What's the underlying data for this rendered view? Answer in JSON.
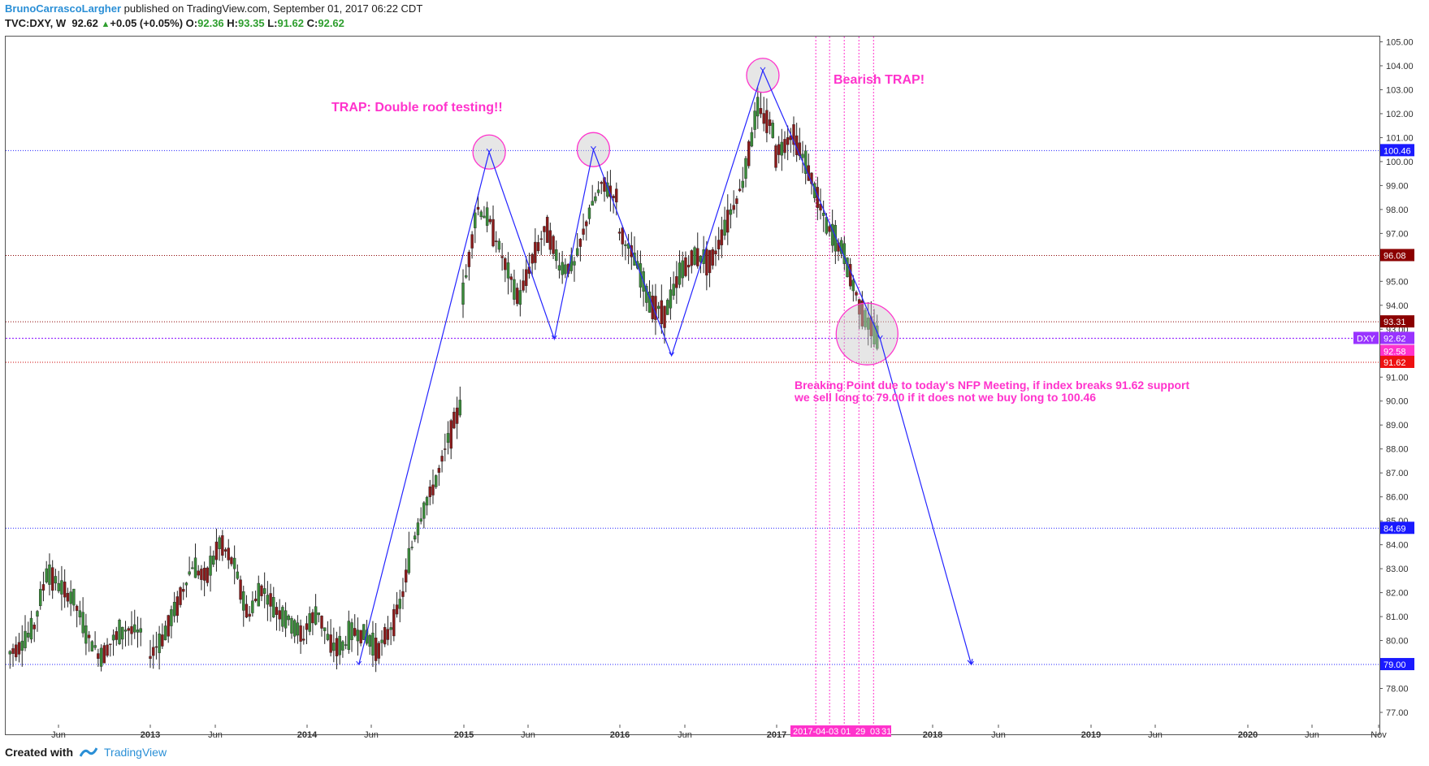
{
  "header": {
    "author": "BrunoCarrascoLargher",
    "published": " published on TradingView.com, September 01, 2017 06:22 CDT",
    "symbol_line": "TVC:DXY, W",
    "last": "92.62",
    "change_arrow": "▲",
    "change": "+0.05 (+0.05%)",
    "o_label": "O:",
    "o_val": "92.36",
    "h_label": "H:",
    "h_val": "93.35",
    "l_label": "L:",
    "l_val": "91.62",
    "c_label": "C:",
    "c_val": "92.62"
  },
  "annotations": {
    "trap_double_roof": "TRAP: Double roof testing!!",
    "bearish_trap": "Bearish TRAP!",
    "breaking_point_line1": "Breaking Point due to today's NFP Meeting, if index breaks 91.62 support",
    "breaking_point_line2": "we sell long to 79.00 if it does not we buy long to 100.46"
  },
  "footer": {
    "created_with": "Created with",
    "brand": "TradingView"
  },
  "colors": {
    "up_candle": "#3a8c3a",
    "down_candle": "#8b1a1a",
    "trendline": "#2424ff",
    "annotation": "#ff33cc",
    "blue_level": "#2222ff",
    "red_level": "#cc0000",
    "dark_red_level": "#8b0000",
    "dxy_label": "#9933ff"
  },
  "chart_data": {
    "type": "candlestick",
    "symbol": "TVC:DXY",
    "interval": "W",
    "ylim": [
      77.0,
      105.0
    ],
    "y_ticks": [
      "105.00",
      "104.00",
      "103.00",
      "102.00",
      "101.00",
      "100.00",
      "99.00",
      "98.00",
      "97.00",
      "96.00",
      "95.00",
      "94.00",
      "93.00",
      "92.00",
      "91.00",
      "90.00",
      "89.00",
      "88.00",
      "87.00",
      "86.00",
      "85.00",
      "84.00",
      "83.00",
      "82.00",
      "81.00",
      "80.00",
      "79.00",
      "78.00",
      "77.00"
    ],
    "x_ticks": [
      "Jun",
      "2013",
      "Jun",
      "2014",
      "Jun",
      "2015",
      "Jun",
      "2016",
      "Jun",
      "2017",
      "2018",
      "Jun",
      "2019",
      "Jun",
      "2020",
      "Jun",
      "Nov"
    ],
    "x_tick_bold": [
      false,
      true,
      false,
      true,
      false,
      true,
      false,
      true,
      false,
      true,
      true,
      false,
      true,
      false,
      true,
      false,
      false
    ],
    "x_range_highlight": "2017-04-03",
    "x_date_labels": [
      "01",
      "29",
      "03",
      "31"
    ],
    "horizontal_levels": [
      {
        "value": 100.46,
        "label": "100.46",
        "style": "blue"
      },
      {
        "value": 96.08,
        "label": "96.08",
        "style": "dark_red"
      },
      {
        "value": 93.31,
        "label": "93.31",
        "style": "dark_red"
      },
      {
        "value": 92.62,
        "label": "92.62",
        "style": "purple"
      },
      {
        "value": 92.58,
        "label": "92.58",
        "style": "magenta"
      },
      {
        "value": 91.62,
        "label": "91.62",
        "style": "red"
      },
      {
        "value": 84.69,
        "label": "84.69",
        "style": "blue"
      },
      {
        "value": 79.0,
        "label": "79.00",
        "style": "blue"
      }
    ],
    "symbol_tag": "DXY",
    "pattern_points": [
      {
        "date": "2014-05",
        "value": 79.0
      },
      {
        "date": "2015-03",
        "value": 100.4
      },
      {
        "date": "2015-08",
        "value": 92.6
      },
      {
        "date": "2015-11",
        "value": 100.5
      },
      {
        "date": "2016-05",
        "value": 91.9
      },
      {
        "date": "2016-12",
        "value": 103.8
      },
      {
        "date": "2017-09",
        "value": 92.6
      },
      {
        "date": "2018-04",
        "value": 79.0
      }
    ],
    "circled_points": [
      {
        "date": "2015-03",
        "value": 100.4
      },
      {
        "date": "2015-11",
        "value": 100.5
      },
      {
        "date": "2016-12",
        "value": 103.6
      },
      {
        "date": "2017-08",
        "value": 92.8
      }
    ],
    "vertical_markers": [
      "2017-04-03",
      "2017-05",
      "2017-06",
      "2017-07",
      "2017-08"
    ],
    "candles_weekly_closes_approx": {
      "2012": [
        79.4,
        79.8,
        80.5,
        82.9,
        82.2,
        81.7,
        80.2,
        79.3,
        80.1,
        80.5,
        80.3
      ],
      "2013": [
        79.4,
        80.2,
        81.6,
        83.1,
        82.6,
        84.1,
        83.2,
        81.0,
        82.2,
        81.3,
        80.8,
        80.1
      ],
      "2014": [
        80.6,
        81.2,
        79.8,
        79.7,
        80.4,
        80.2,
        79.6,
        80.4,
        81.6,
        84.1,
        85.6,
        86.7,
        88.4,
        89.8
      ],
      "2015": [
        94.4,
        98.1,
        97.4,
        95.7,
        94.2,
        96.0,
        97.3,
        95.5,
        95.7,
        97.8,
        99.1,
        98.5
      ],
      "2016": [
        97.1,
        95.9,
        94.1,
        93.6,
        95.4,
        96.1,
        95.8,
        97.5,
        99.0,
        102.2,
        101.4
      ],
      "2017": [
        100.3,
        101.2,
        99.5,
        97.3,
        96.2,
        93.9,
        92.6
      ]
    }
  }
}
